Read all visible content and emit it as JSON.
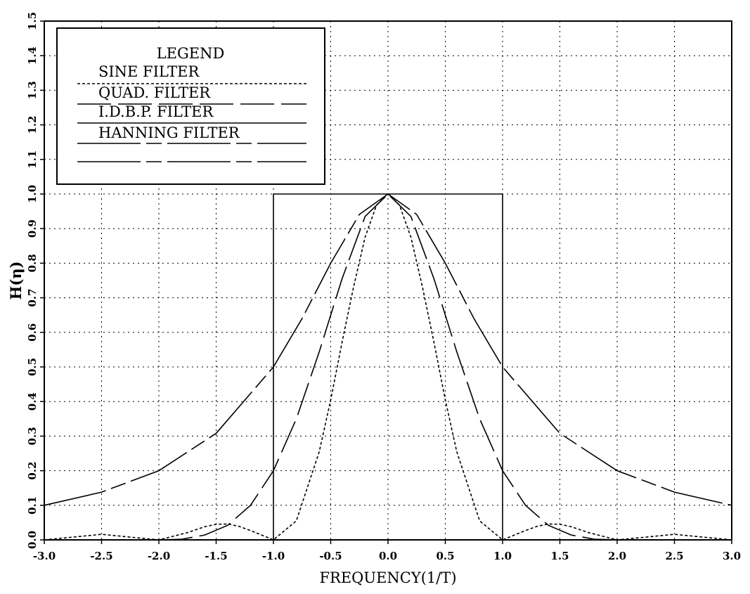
{
  "chart_data": {
    "type": "line",
    "xlabel": "FREQUENCY(1/T)",
    "ylabel": "H(η)",
    "xlim": [
      -3.0,
      3.0
    ],
    "ylim": [
      0.0,
      1.5
    ],
    "grid": true,
    "x_ticks": [
      "-3.0",
      "-2.5",
      "-2.0",
      "-1.5",
      "-1.0",
      "-0.5",
      "0.0",
      "0.5",
      "1.0",
      "1.5",
      "2.0",
      "2.5",
      "3.0"
    ],
    "y_ticks": [
      "0.0",
      "0.1",
      "0.2",
      "0.3",
      "0.4",
      "0.5",
      "0.6",
      "0.7",
      "0.8",
      "0.9",
      "1.0",
      "1.1",
      "1.2",
      "1.3",
      "1.4",
      "1.5"
    ],
    "legend": {
      "title": "LEGEND",
      "placement": "top-left",
      "entries": [
        "SINE FILTER",
        "QUAD. FILTER",
        "I.D.B.P. FILTER",
        "HANNING FILTER"
      ]
    },
    "series": [
      {
        "name": "SINE FILTER",
        "style": "dotted",
        "x": [
          -3.0,
          -2.75,
          -2.5,
          -2.25,
          -2.0,
          -1.75,
          -1.6,
          -1.5,
          -1.4,
          -1.3,
          -1.2,
          -1.0,
          -0.8,
          -0.6,
          -0.5,
          -0.4,
          -0.3,
          -0.2,
          -0.1,
          0.0,
          0.1,
          0.2,
          0.3,
          0.4,
          0.5,
          0.6,
          0.8,
          1.0,
          1.2,
          1.3,
          1.4,
          1.5,
          1.6,
          1.75,
          2.0,
          2.25,
          2.5,
          2.75,
          3.0
        ],
        "y": [
          0.0,
          0.008,
          0.016,
          0.008,
          0.0,
          0.021,
          0.038,
          0.045,
          0.046,
          0.039,
          0.027,
          0.0,
          0.055,
          0.255,
          0.405,
          0.573,
          0.732,
          0.875,
          0.968,
          1.0,
          0.968,
          0.875,
          0.732,
          0.573,
          0.405,
          0.255,
          0.055,
          0.0,
          0.027,
          0.039,
          0.046,
          0.045,
          0.038,
          0.021,
          0.0,
          0.008,
          0.016,
          0.008,
          0.0
        ]
      },
      {
        "name": "QUAD. FILTER",
        "style": "long-dash",
        "x": [
          -2.0,
          -1.8,
          -1.6,
          -1.4,
          -1.2,
          -1.0,
          -0.8,
          -0.6,
          -0.4,
          -0.2,
          0.0,
          0.2,
          0.4,
          0.6,
          0.8,
          1.0,
          1.2,
          1.4,
          1.6,
          1.8,
          2.0
        ],
        "y": [
          0.0,
          0.002,
          0.014,
          0.042,
          0.1,
          0.2,
          0.35,
          0.544,
          0.756,
          0.935,
          1.0,
          0.935,
          0.756,
          0.544,
          0.35,
          0.2,
          0.1,
          0.042,
          0.014,
          0.002,
          0.0
        ]
      },
      {
        "name": "I.D.B.P. FILTER",
        "style": "solid",
        "x": [
          -3.0,
          -1.0,
          -1.0,
          1.0,
          1.0,
          3.0
        ],
        "y": [
          0.0,
          0.0,
          1.0,
          1.0,
          0.0,
          0.0
        ]
      },
      {
        "name": "HANNING FILTER",
        "style": "dash-dot",
        "x": [
          -3.0,
          -2.5,
          -2.0,
          -1.5,
          -1.0,
          -0.75,
          -0.5,
          -0.25,
          0.0,
          0.25,
          0.5,
          0.75,
          1.0,
          1.5,
          2.0,
          2.5,
          3.0
        ],
        "y": [
          0.1,
          0.138,
          0.2,
          0.308,
          0.5,
          0.64,
          0.8,
          0.941,
          1.0,
          0.941,
          0.8,
          0.64,
          0.5,
          0.308,
          0.2,
          0.138,
          0.1
        ]
      }
    ]
  }
}
